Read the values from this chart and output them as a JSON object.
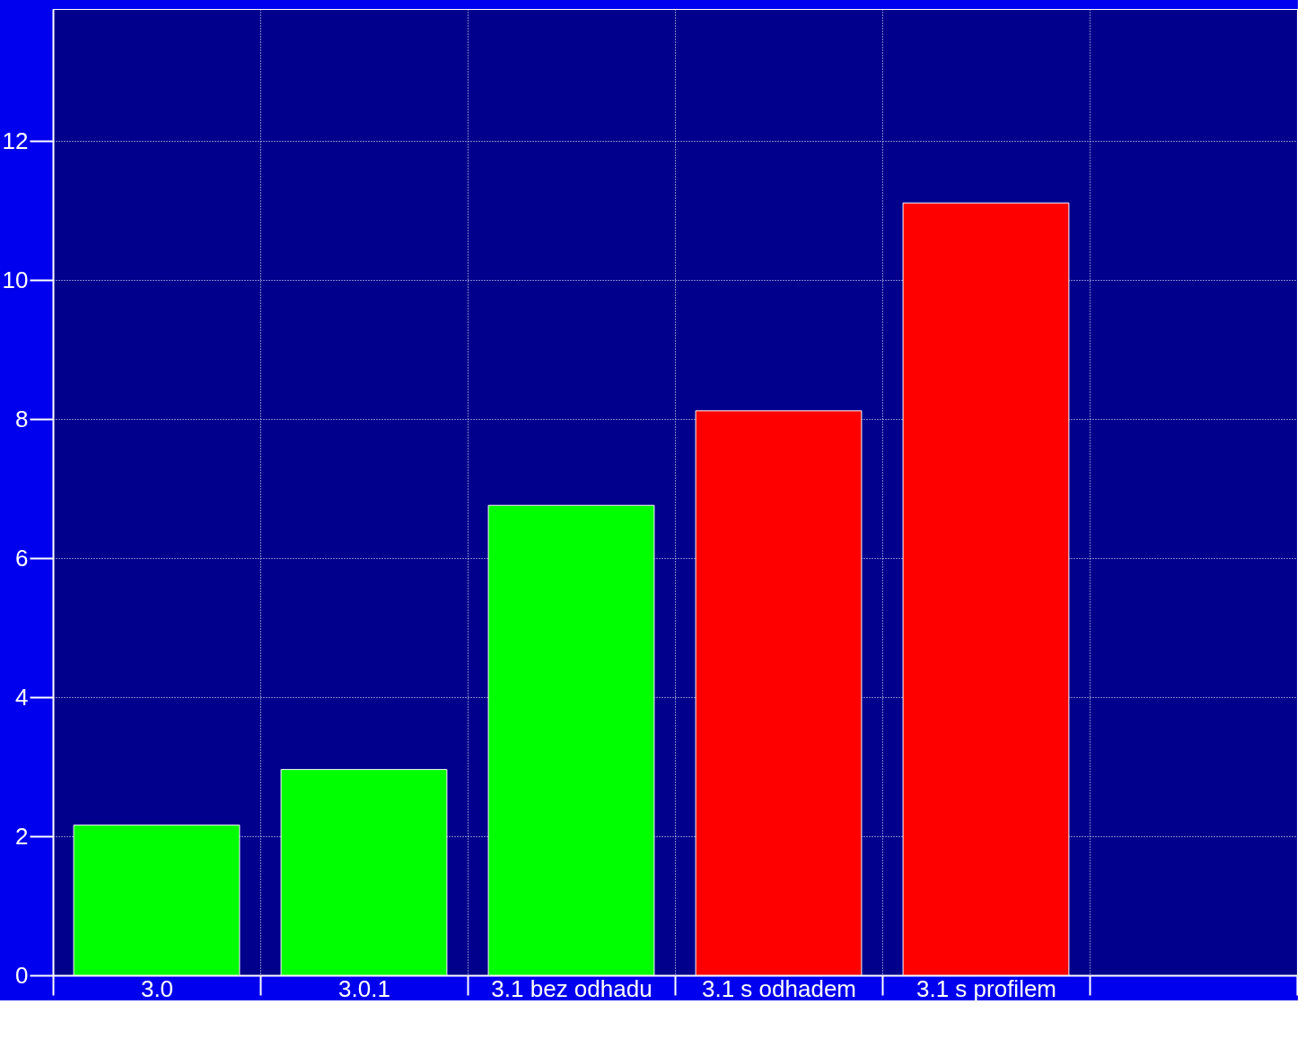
{
  "chart_data": {
    "type": "bar",
    "categories": [
      "3.0",
      "3.0.1",
      "3.1 bez odhadu",
      "3.1 s odhadem",
      "3.1 s profilem",
      null
    ],
    "values": [
      2.16,
      2.96,
      6.76,
      8.12,
      11.11,
      null
    ],
    "colors": [
      "#00ff00",
      "#00ff00",
      "#00ff00",
      "#ff0000",
      "#ff0000",
      null
    ],
    "ylim": [
      0,
      13.9
    ],
    "yticks": [
      0,
      2,
      4,
      6,
      8,
      10,
      12
    ],
    "grid": true
  }
}
